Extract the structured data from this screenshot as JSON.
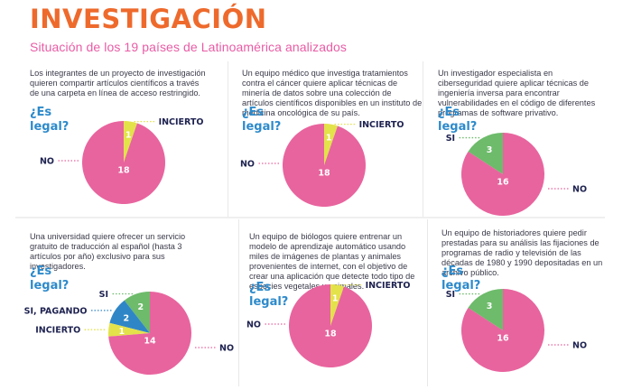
{
  "header": {
    "title": "INVESTIGACIÓN",
    "subtitle": "Situación de los 19 países de Latinoamérica analizados"
  },
  "colors": {
    "NO": "#E8649E",
    "INCIERTO": "#E3E24A",
    "SI": "#6DBB6B",
    "SI, PAGANDO": "#2F86C6",
    "title": "#EE6A2C",
    "subtitle": "#E85CA5",
    "question": "#2D8ACB",
    "label": "#1E2250"
  },
  "question_label": "¿Es legal?",
  "chart_data": [
    {
      "type": "pie",
      "title": "¿Es legal?",
      "description": "Los integrantes de un proyecto de investigación quieren compartir artículos científicos a través de una carpeta en línea de acceso restringido.",
      "categories": [
        "INCIERTO",
        "NO"
      ],
      "values": [
        1,
        18
      ]
    },
    {
      "type": "pie",
      "title": "¿Es legal?",
      "description": "Un equipo médico que investiga tratamientos contra el cáncer quiere aplicar técnicas de minería de datos sobre una colección de artículos científicos disponibles en un instituto de medicina oncológica de su país.",
      "categories": [
        "INCIERTO",
        "NO"
      ],
      "values": [
        1,
        18
      ]
    },
    {
      "type": "pie",
      "title": "¿Es legal?",
      "description": "Un investigador especialista en ciberseguridad quiere aplicar técnicas de ingeniería inversa para encontrar vulnerabilidades en el código de diferentes programas de software privativo.",
      "categories": [
        "SI",
        "NO"
      ],
      "values": [
        3,
        16
      ]
    },
    {
      "type": "pie",
      "title": "¿Es legal?",
      "description": "Una universidad quiere ofrecer un servicio gratuito de traducción al español (hasta 3 artículos por año) exclusivo para sus investigadores.",
      "categories": [
        "SI",
        "SI, PAGANDO",
        "INCIERTO",
        "NO"
      ],
      "values": [
        2,
        2,
        1,
        14
      ]
    },
    {
      "type": "pie",
      "title": "¿Es legal?",
      "description": "Un equipo de biólogos quiere entrenar un modelo de aprendizaje automático usando miles de imágenes de plantas y animales provenientes de internet, con el objetivo de crear una aplicación que detecte todo tipo de especies vegetales y animales.",
      "categories": [
        "INCIERTO",
        "NO"
      ],
      "values": [
        1,
        18
      ]
    },
    {
      "type": "pie",
      "title": "¿Es legal?",
      "description": "Un equipo de historiadores quiere pedir prestadas para su análisis las fijaciones de programas de radio y televisión de las décadas de 1980 y 1990 depositadas en un archivo público.",
      "categories": [
        "SI",
        "NO"
      ],
      "values": [
        3,
        16
      ]
    }
  ]
}
